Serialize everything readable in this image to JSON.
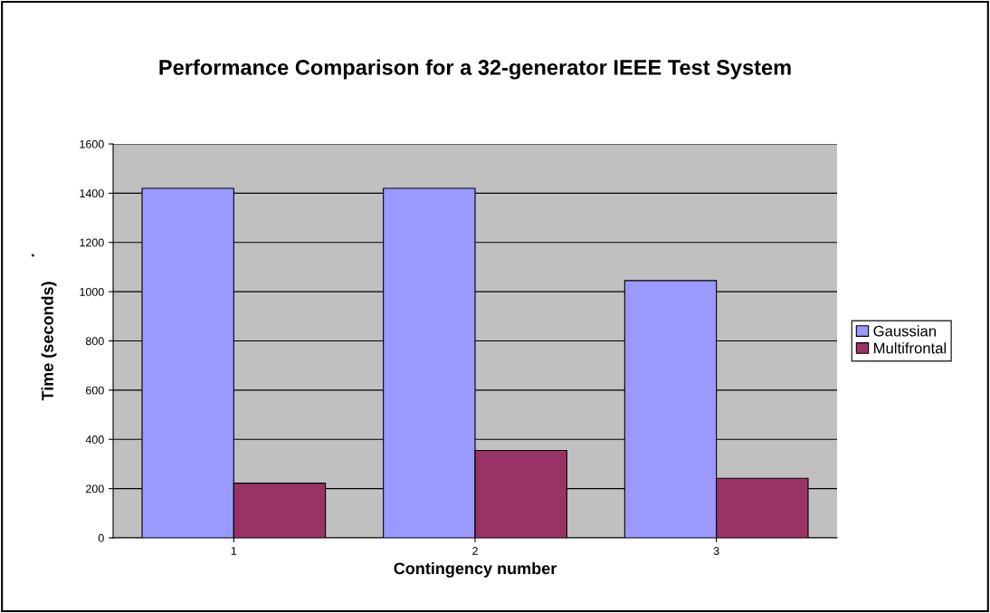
{
  "chart_data": {
    "type": "bar",
    "title": "Performance Comparison for a 32-generator IEEE Test System",
    "xlabel": "Contingency number",
    "ylabel": "Time (seconds)",
    "annotations": [
      "."
    ],
    "categories": [
      "1",
      "2",
      "3"
    ],
    "series": [
      {
        "name": "Gaussian",
        "color": "#9999ff",
        "values": [
          1420,
          1420,
          1045
        ]
      },
      {
        "name": "Multifrontal",
        "color": "#993366",
        "values": [
          222,
          355,
          242
        ]
      }
    ],
    "ylim": [
      0,
      1600
    ],
    "yticks": [
      0,
      200,
      400,
      600,
      800,
      1000,
      1200,
      1400,
      1600
    ],
    "grid": "y",
    "legend": "right"
  }
}
